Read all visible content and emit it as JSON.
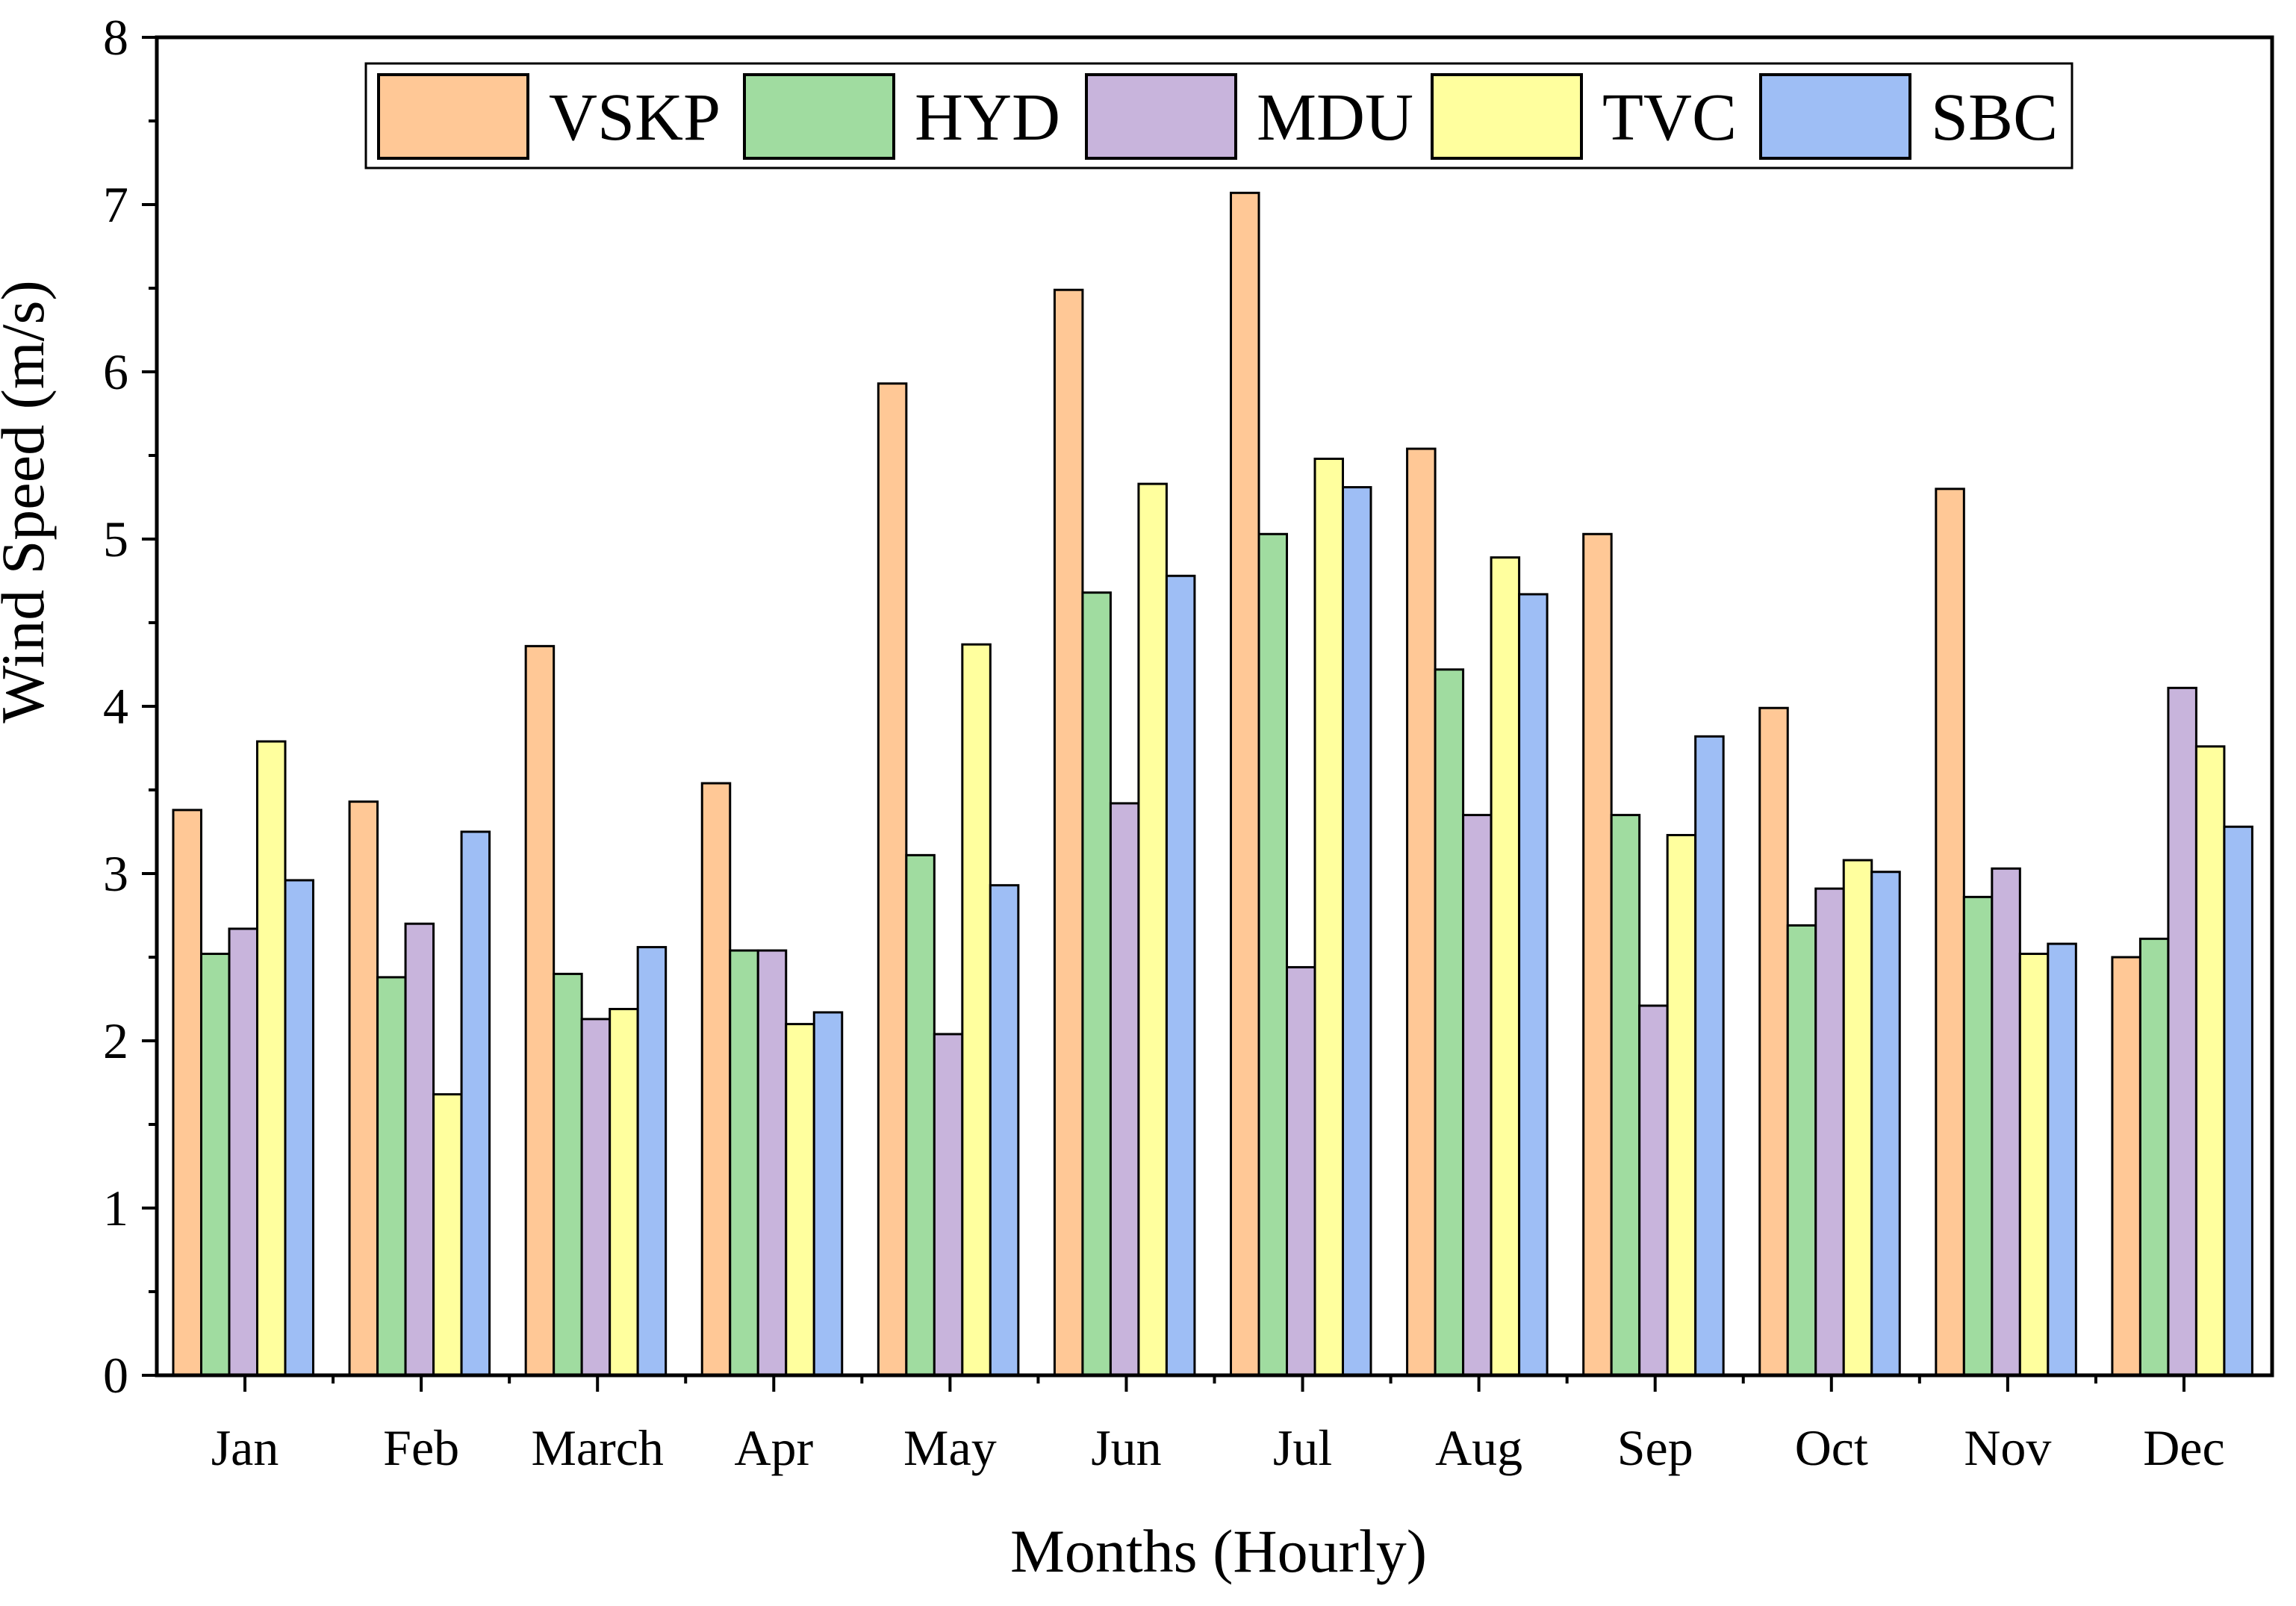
{
  "chart_data": {
    "type": "bar",
    "title": "",
    "xlabel": "Months (Hourly)",
    "ylabel": "Wind Speed (m/s)",
    "ylim": [
      0,
      8
    ],
    "yticks": [
      "0",
      "1",
      "2",
      "3",
      "4",
      "5",
      "6",
      "7",
      "8"
    ],
    "grid": false,
    "legend_position": "top-center",
    "categories": [
      "Jan",
      "Feb",
      "March",
      "Apr",
      "May",
      "Jun",
      "Jul",
      "Aug",
      "Sep",
      "Oct",
      "Nov",
      "Dec"
    ],
    "series": [
      {
        "name": "VSKP",
        "color": "#FFC896",
        "values": [
          3.38,
          3.43,
          4.36,
          3.54,
          5.93,
          6.49,
          7.07,
          5.54,
          5.03,
          3.99,
          5.3,
          2.5
        ]
      },
      {
        "name": "HYD",
        "color": "#A0DCA0",
        "values": [
          2.52,
          2.38,
          2.4,
          2.54,
          3.11,
          4.68,
          5.03,
          4.22,
          3.35,
          2.69,
          2.86,
          2.61
        ]
      },
      {
        "name": "MDU",
        "color": "#C8B4DC",
        "values": [
          2.67,
          2.7,
          2.13,
          2.54,
          2.04,
          3.42,
          2.44,
          3.35,
          2.21,
          2.91,
          3.03,
          4.11
        ]
      },
      {
        "name": "TVC",
        "color": "#FFFF9E",
        "values": [
          3.79,
          1.68,
          2.19,
          2.1,
          4.37,
          5.33,
          5.48,
          4.89,
          3.23,
          3.08,
          2.52,
          3.76
        ]
      },
      {
        "name": "SBC",
        "color": "#9EBEF5",
        "values": [
          2.96,
          3.25,
          2.56,
          2.17,
          2.93,
          4.78,
          5.31,
          4.67,
          3.82,
          3.01,
          2.58,
          3.28
        ]
      }
    ]
  }
}
